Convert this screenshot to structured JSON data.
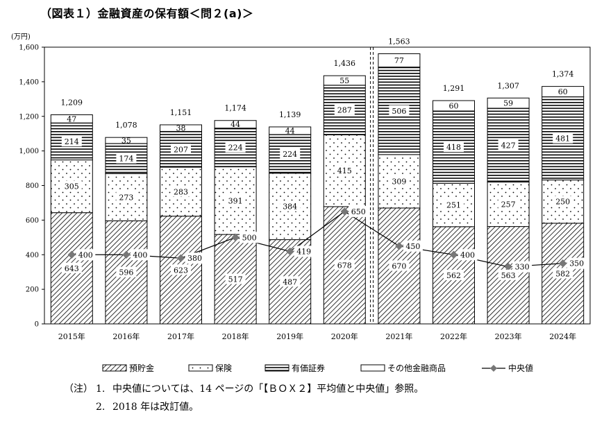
{
  "title": "（図表１）金融資産の保有額＜問２(a)＞",
  "unit": "(万円)",
  "notes": {
    "head": "（注）",
    "items": [
      {
        "num": "1.",
        "text": "中央値については、14 ページの「【ＢＯＸ２】平均値と中央値」参照。"
      },
      {
        "num": "2.",
        "text": "2018 年は改訂値。"
      }
    ]
  },
  "chart_data": {
    "type": "bar",
    "stacked": true,
    "categories": [
      "2015年",
      "2016年",
      "2017年",
      "2018年",
      "2019年",
      "2020年",
      "2021年",
      "2022年",
      "2023年",
      "2024年"
    ],
    "series": [
      {
        "name": "預貯金",
        "values": [
          643,
          596,
          623,
          517,
          487,
          678,
          670,
          562,
          563,
          582
        ],
        "pattern": "diagonal-hatch"
      },
      {
        "name": "保険",
        "values": [
          305,
          273,
          283,
          391,
          384,
          415,
          309,
          251,
          257,
          250
        ],
        "pattern": "dots"
      },
      {
        "name": "有価証券",
        "values": [
          214,
          174,
          207,
          224,
          224,
          287,
          506,
          418,
          427,
          481
        ],
        "pattern": "horizontal-lines"
      },
      {
        "name": "その他金融商品",
        "values": [
          47,
          35,
          38,
          44,
          44,
          55,
          77,
          60,
          59,
          60
        ],
        "pattern": "blank"
      }
    ],
    "totals": [
      "1,209",
      "1,078",
      "1,151",
      "1,174",
      "1,139",
      "1,436",
      "1,563",
      "1,291",
      "1,307",
      "1,374"
    ],
    "median": {
      "name": "中央値",
      "values": [
        400,
        400,
        380,
        500,
        419,
        650,
        450,
        400,
        330,
        350
      ],
      "color": "#777777"
    },
    "yticks": [
      "0",
      "200",
      "400",
      "600",
      "800",
      "1,000",
      "1,200",
      "1,400",
      "1,600"
    ],
    "ylim": [
      0,
      1600
    ],
    "break_between": [
      "2020年",
      "2021年"
    ],
    "legend_position": "bottom"
  }
}
